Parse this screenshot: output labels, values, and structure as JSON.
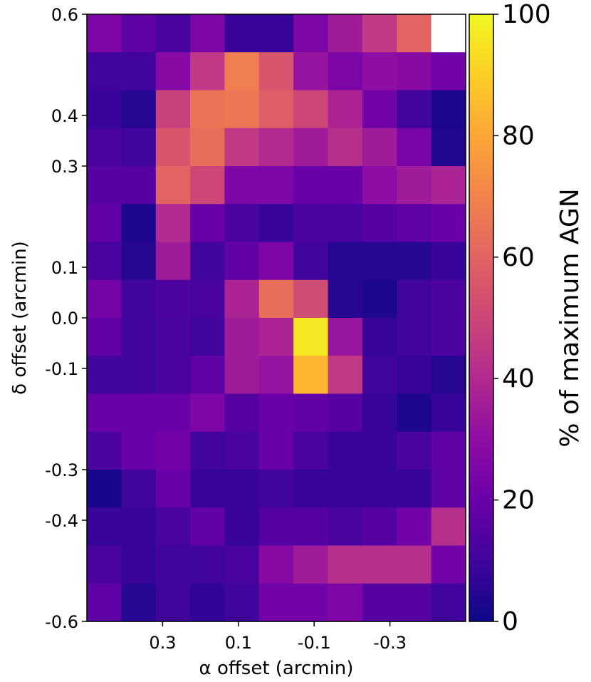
{
  "chart_data": {
    "type": "heatmap",
    "xlabel": "α offset (arcmin)",
    "ylabel": "δ offset (arcmin)",
    "xlim": [
      0.5,
      -0.5
    ],
    "ylim": [
      -0.6,
      0.6
    ],
    "x_ticks": [
      {
        "value": 0.3,
        "label": "0.3"
      },
      {
        "value": 0.1,
        "label": "0.1"
      },
      {
        "value": -0.1,
        "label": "-0.1"
      },
      {
        "value": -0.3,
        "label": "-0.3"
      }
    ],
    "y_ticks": [
      {
        "value": 0.6,
        "label": "0.6"
      },
      {
        "value": 0.4,
        "label": "0.4"
      },
      {
        "value": 0.3,
        "label": "0.3"
      },
      {
        "value": 0.1,
        "label": "0.1"
      },
      {
        "value": 0.0,
        "label": "0.0"
      },
      {
        "value": -0.1,
        "label": "-0.1"
      },
      {
        "value": -0.3,
        "label": "-0.3"
      },
      {
        "value": -0.4,
        "label": "-0.4"
      },
      {
        "value": -0.6,
        "label": "-0.6"
      }
    ],
    "colorbar": {
      "label": "% of maximum AGN",
      "range": [
        0,
        100
      ],
      "ticks": [
        {
          "value": 0,
          "label": "0"
        },
        {
          "value": 20,
          "label": "20"
        },
        {
          "value": 40,
          "label": "40"
        },
        {
          "value": 60,
          "label": "60"
        },
        {
          "value": 80,
          "label": "80"
        },
        {
          "value": 100,
          "label": "100"
        }
      ],
      "colormap": "plasma"
    },
    "n_cols": 11,
    "n_rows": 16,
    "values_top_to_bottom": [
      [
        25,
        17,
        12,
        25,
        8,
        8,
        25,
        35,
        45,
        60,
        null
      ],
      [
        10,
        10,
        28,
        45,
        68,
        55,
        32,
        25,
        30,
        28,
        22
      ],
      [
        8,
        5,
        48,
        65,
        66,
        58,
        50,
        38,
        22,
        10,
        3
      ],
      [
        12,
        10,
        55,
        63,
        45,
        40,
        35,
        42,
        35,
        24,
        4
      ],
      [
        15,
        15,
        60,
        50,
        25,
        25,
        20,
        20,
        30,
        35,
        38
      ],
      [
        18,
        3,
        40,
        20,
        12,
        8,
        12,
        12,
        15,
        17,
        20
      ],
      [
        12,
        5,
        35,
        10,
        18,
        25,
        10,
        5,
        5,
        5,
        8
      ],
      [
        23,
        10,
        13,
        12,
        38,
        63,
        52,
        5,
        3,
        10,
        13
      ],
      [
        18,
        10,
        12,
        10,
        35,
        38,
        96,
        33,
        8,
        10,
        13
      ],
      [
        10,
        10,
        12,
        17,
        35,
        32,
        84,
        45,
        10,
        8,
        5
      ],
      [
        20,
        20,
        20,
        25,
        15,
        20,
        18,
        15,
        8,
        3,
        8
      ],
      [
        13,
        20,
        22,
        10,
        12,
        20,
        12,
        8,
        8,
        12,
        17
      ],
      [
        2,
        10,
        20,
        8,
        8,
        10,
        8,
        8,
        8,
        8,
        17
      ],
      [
        8,
        8,
        12,
        18,
        8,
        15,
        15,
        12,
        15,
        22,
        42
      ],
      [
        12,
        8,
        10,
        10,
        12,
        28,
        35,
        42,
        42,
        42,
        22
      ],
      [
        17,
        5,
        10,
        7,
        10,
        22,
        22,
        25,
        15,
        15,
        10
      ]
    ]
  }
}
